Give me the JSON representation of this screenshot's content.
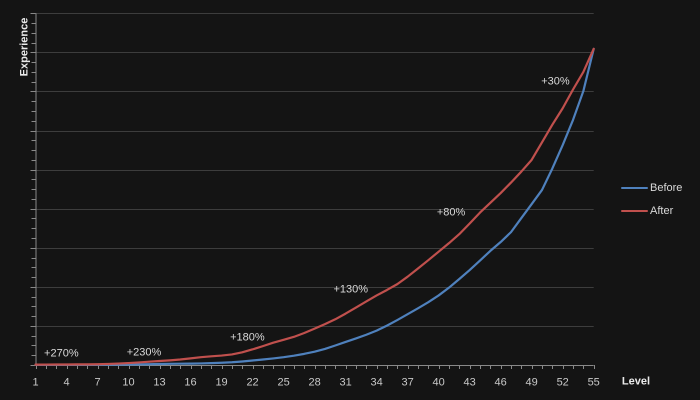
{
  "chart_data": {
    "type": "line",
    "title": "",
    "xlabel": "Level",
    "ylabel": "Experience",
    "x": [
      1,
      2,
      3,
      4,
      5,
      6,
      7,
      8,
      9,
      10,
      11,
      12,
      13,
      14,
      15,
      16,
      17,
      18,
      19,
      20,
      21,
      22,
      23,
      24,
      25,
      26,
      27,
      28,
      29,
      30,
      31,
      32,
      33,
      34,
      35,
      36,
      37,
      38,
      39,
      40,
      41,
      42,
      43,
      44,
      45,
      46,
      47,
      48,
      49,
      50,
      51,
      52,
      53,
      54,
      55
    ],
    "series": [
      {
        "name": "Before",
        "color": "#4f81bd",
        "values": [
          0.005,
          0.005,
          0.005,
          0.005,
          0.006,
          0.006,
          0.007,
          0.008,
          0.01,
          0.012,
          0.015,
          0.02,
          0.025,
          0.03,
          0.033,
          0.036,
          0.04,
          0.047,
          0.057,
          0.07,
          0.09,
          0.115,
          0.14,
          0.168,
          0.2,
          0.239,
          0.285,
          0.34,
          0.412,
          0.499,
          0.59,
          0.68,
          0.774,
          0.88,
          1.007,
          1.15,
          1.3,
          1.45,
          1.607,
          1.78,
          1.979,
          2.2,
          2.43,
          2.672,
          2.92,
          3.147,
          3.4,
          3.76,
          4.119,
          4.48,
          5.029,
          5.629,
          6.272,
          7.01,
          8.09
        ]
      },
      {
        "name": "After",
        "color": "#c0504d",
        "values": [
          0.01,
          0.011,
          0.012,
          0.013,
          0.015,
          0.017,
          0.02,
          0.027,
          0.037,
          0.05,
          0.066,
          0.085,
          0.102,
          0.119,
          0.14,
          0.169,
          0.2,
          0.222,
          0.242,
          0.27,
          0.325,
          0.4,
          0.483,
          0.57,
          0.643,
          0.72,
          0.819,
          0.93,
          1.045,
          1.17,
          1.315,
          1.47,
          1.626,
          1.78,
          1.92,
          2.07,
          2.26,
          2.47,
          2.682,
          2.9,
          3.118,
          3.35,
          3.621,
          3.9,
          4.15,
          4.4,
          4.668,
          4.95,
          5.25,
          5.7,
          6.15,
          6.57,
          7.05,
          7.5,
          8.09
        ]
      }
    ],
    "x_tick_labels": [
      1,
      4,
      7,
      10,
      13,
      16,
      19,
      22,
      25,
      28,
      31,
      34,
      37,
      40,
      43,
      46,
      49,
      52,
      55
    ],
    "xlim": [
      1,
      55
    ],
    "ylim": [
      0,
      9
    ],
    "y_gridline_step": 1,
    "y_minor_tick_step": 0.25,
    "grid": "horizontal-only",
    "y_tick_labels_shown": false,
    "legend_position": "right",
    "annotations": [
      {
        "label": "+270%",
        "level": 3.5,
        "value": 0.27
      },
      {
        "label": "+230%",
        "level": 11.5,
        "value": 0.31
      },
      {
        "label": "+180%",
        "level": 21.5,
        "value": 0.7
      },
      {
        "label": "+130%",
        "level": 31.5,
        "value": 1.93
      },
      {
        "label": "+80%",
        "level": 41.2,
        "value": 3.89
      },
      {
        "label": "+30%",
        "level": 51.3,
        "value": 7.24
      }
    ]
  },
  "colors": {
    "background": "#141414",
    "gridline": "#3d3d3d",
    "axis_line": "#898989",
    "tick_label": "#c9c9c9",
    "axis_title": "#eaeaea",
    "annotation": "#d9d9d9",
    "legend_label": "#d9d9d9",
    "before_line": "#4f81bd",
    "after_line": "#c0504d"
  }
}
